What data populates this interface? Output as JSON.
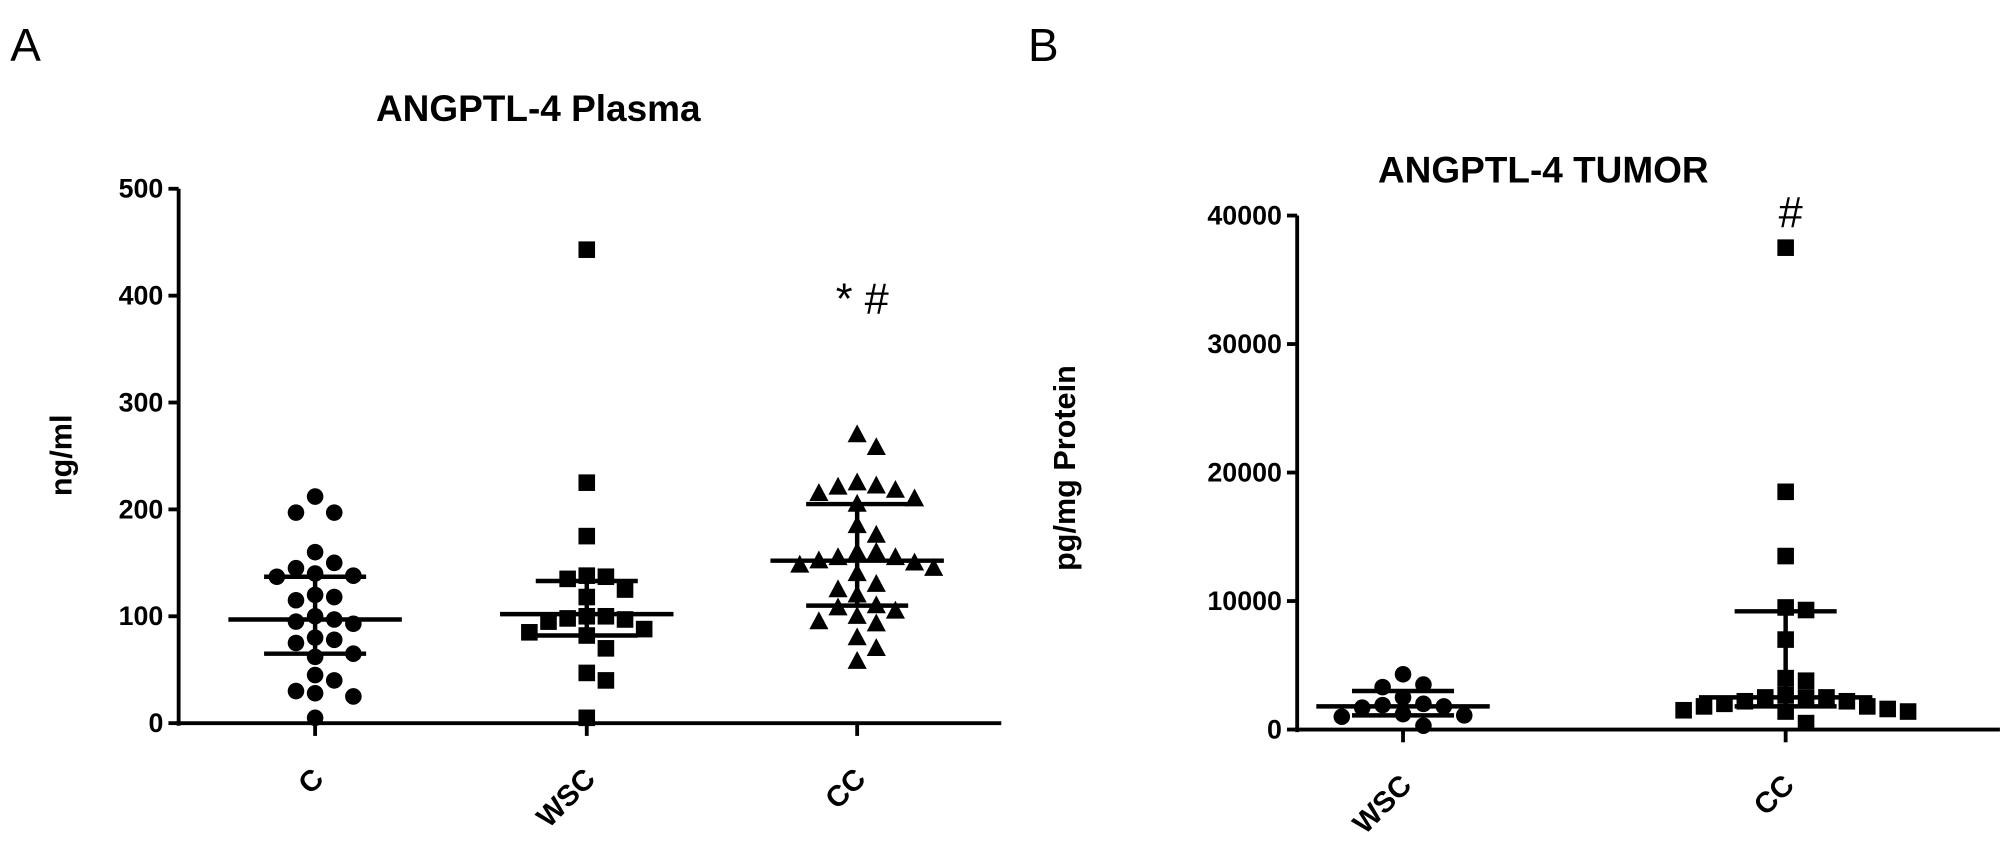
{
  "chart_data": [
    {
      "panel_label": "A",
      "type": "scatter",
      "title": "ANGPTL-4 Plasma",
      "ylabel": "ng/ml",
      "xlabel": "",
      "ylim": [
        0,
        500
      ],
      "yticks": [
        "0",
        "100",
        "200",
        "300",
        "400",
        "500"
      ],
      "categories": [
        "C",
        "WSC",
        "CC"
      ],
      "markers": [
        "circle",
        "square",
        "triangle"
      ],
      "annotations": [
        {
          "category": "CC",
          "text": "* #",
          "y": 400
        }
      ],
      "groups": [
        {
          "category": "C",
          "values": [
            212,
            197,
            197,
            160,
            150,
            145,
            140,
            138,
            137,
            120,
            118,
            115,
            100,
            97,
            95,
            93,
            80,
            78,
            75,
            65,
            62,
            45,
            40,
            30,
            28,
            25,
            5
          ],
          "center": 97,
          "lower": 65,
          "upper": 137
        },
        {
          "category": "WSC",
          "values": [
            443,
            225,
            175,
            138,
            137,
            135,
            125,
            118,
            100,
            100,
            98,
            97,
            95,
            88,
            85,
            82,
            70,
            47,
            40,
            5
          ],
          "center": 102,
          "lower": 82,
          "upper": 133
        },
        {
          "category": "CC",
          "values": [
            270,
            258,
            225,
            222,
            221,
            218,
            215,
            210,
            205,
            185,
            176,
            160,
            160,
            155,
            155,
            152,
            150,
            148,
            145,
            140,
            130,
            125,
            120,
            110,
            108,
            105,
            100,
            95,
            93,
            80,
            70,
            58
          ],
          "center": 152,
          "lower": 110,
          "upper": 205
        }
      ]
    },
    {
      "panel_label": "B",
      "type": "scatter",
      "title": "ANGPTL-4 TUMOR",
      "ylabel": "pg/mg Protein",
      "xlabel": "",
      "ylim": [
        0,
        40000
      ],
      "yticks": [
        "0",
        "10000",
        "20000",
        "30000",
        "40000"
      ],
      "categories": [
        "WSC",
        "CC"
      ],
      "markers": [
        "circle",
        "square"
      ],
      "annotations": [
        {
          "category": "CC",
          "text": "#",
          "y": 40500
        }
      ],
      "groups": [
        {
          "category": "WSC",
          "values": [
            4300,
            3500,
            3300,
            2500,
            2000,
            1900,
            1800,
            1700,
            1200,
            1100,
            1000,
            300
          ],
          "center": 1800,
          "lower": 1100,
          "upper": 3000
        },
        {
          "category": "CC",
          "values": [
            37500,
            18500,
            13500,
            9500,
            9300,
            7000,
            4000,
            3800,
            2700,
            2500,
            2500,
            2500,
            2200,
            2200,
            2000,
            1800,
            1800,
            1600,
            1500,
            1400,
            1400,
            500
          ],
          "center": 2500,
          "lower": 1800,
          "upper": 9200
        }
      ]
    }
  ]
}
